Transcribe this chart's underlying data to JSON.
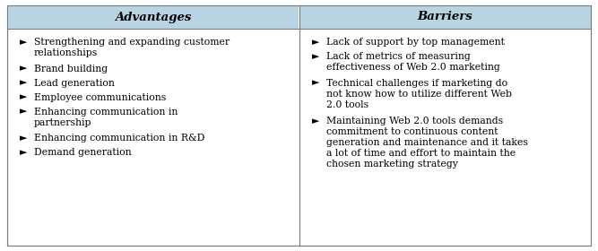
{
  "header_bg_color": "#b8d4e3",
  "body_bg_color": "#ffffff",
  "border_color": "#7a7a7a",
  "header_fontsize": 9.5,
  "body_fontsize": 7.8,
  "col1_header": "Advantages",
  "col2_header": "Barriers",
  "col1_items": [
    "Strengthening and expanding customer\nrelationships",
    "Brand building",
    "Lead generation",
    "Employee communications",
    "Enhancing communication in\npartnership",
    "Enhancing communication in R&D",
    "Demand generation"
  ],
  "col2_items": [
    "Lack of support by top management",
    "Lack of metrics of measuring\neffectiveness of Web 2.0 marketing",
    "Technical challenges if marketing do\nnot know how to utilize different Web\n2.0 tools",
    "Maintaining Web 2.0 tools demands\ncommitment to continuous content\ngeneration and maintenance and it takes\na lot of time and effort to maintain the\nchosen marketing strategy"
  ],
  "bullet": "►",
  "fig_width": 6.67,
  "fig_height": 2.8,
  "dpi": 100
}
